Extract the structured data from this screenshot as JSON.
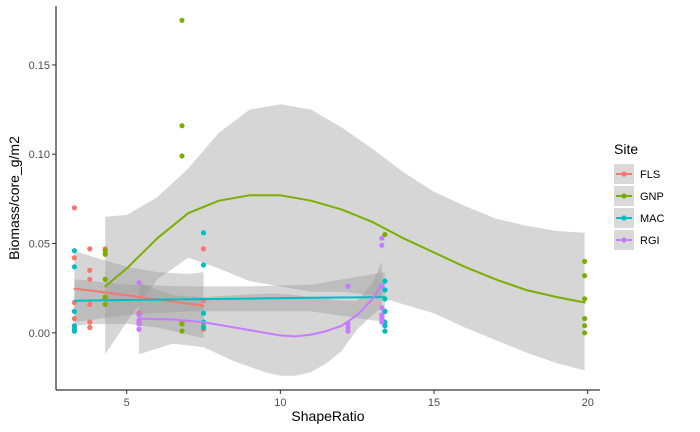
{
  "chart_data": {
    "type": "scatter",
    "title": "",
    "xlabel": "ShapeRatio",
    "ylabel": "Biomass/core_g/m2",
    "xlim": [
      2.7,
      20.4
    ],
    "ylim": [
      -0.032,
      0.183
    ],
    "x_ticks": [
      5,
      10,
      15,
      20
    ],
    "y_ticks": [
      0.0,
      0.05,
      0.1,
      0.15
    ],
    "x_tick_labels": [
      "5",
      "10",
      "15",
      "20"
    ],
    "y_tick_labels": [
      "0.00",
      "0.05",
      "0.10",
      "0.15"
    ],
    "grid": false,
    "legend": {
      "title": "Site",
      "position": "right"
    },
    "ribbon_color": "#999999",
    "series": [
      {
        "name": "FLS",
        "color": "#F8766D",
        "points": [
          [
            3.3,
            0.07
          ],
          [
            3.3,
            0.042
          ],
          [
            3.3,
            0.017
          ],
          [
            3.3,
            0.008
          ],
          [
            3.3,
            0.003
          ],
          [
            3.8,
            0.047
          ],
          [
            3.8,
            0.035
          ],
          [
            3.8,
            0.03
          ],
          [
            3.8,
            0.016
          ],
          [
            3.8,
            0.006
          ],
          [
            3.8,
            0.003
          ],
          [
            4.3,
            0.047
          ],
          [
            4.3,
            0.019
          ],
          [
            5.4,
            0.011
          ],
          [
            5.4,
            0.006
          ],
          [
            6.8,
            0.006
          ],
          [
            7.5,
            0.047
          ],
          [
            7.5,
            0.018
          ],
          [
            7.5,
            0.004
          ],
          [
            7.5,
            0.002
          ]
        ],
        "fit": [
          [
            3.3,
            0.0248
          ],
          [
            4.0,
            0.0233
          ],
          [
            5.0,
            0.021
          ],
          [
            6.0,
            0.0187
          ],
          [
            7.0,
            0.0164
          ],
          [
            7.5,
            0.0152
          ]
        ],
        "ribbon_upper": [
          [
            3.3,
            0.046
          ],
          [
            4.0,
            0.042
          ],
          [
            5.0,
            0.037
          ],
          [
            6.0,
            0.034
          ],
          [
            7.0,
            0.033
          ],
          [
            7.5,
            0.034
          ]
        ],
        "ribbon_lower": [
          [
            3.3,
            0.004
          ],
          [
            4.0,
            0.005
          ],
          [
            5.0,
            0.005
          ],
          [
            6.0,
            0.003
          ],
          [
            7.0,
            -0.001
          ],
          [
            7.5,
            -0.003
          ]
        ]
      },
      {
        "name": "GNP",
        "color": "#7CAE00",
        "points": [
          [
            4.3,
            0.046
          ],
          [
            4.3,
            0.044
          ],
          [
            4.3,
            0.03
          ],
          [
            4.3,
            0.02
          ],
          [
            4.3,
            0.016
          ],
          [
            6.8,
            0.175
          ],
          [
            6.8,
            0.116
          ],
          [
            6.8,
            0.099
          ],
          [
            6.8,
            0.005
          ],
          [
            6.8,
            0.001
          ],
          [
            13.4,
            0.055
          ],
          [
            13.4,
            0.012
          ],
          [
            19.9,
            0.04
          ],
          [
            19.9,
            0.032
          ],
          [
            19.9,
            0.019
          ],
          [
            19.9,
            0.008
          ],
          [
            19.9,
            0.004
          ],
          [
            19.9,
            0.0
          ]
        ],
        "fit": [
          [
            4.3,
            0.026
          ],
          [
            5.0,
            0.036
          ],
          [
            6.0,
            0.053
          ],
          [
            7.0,
            0.067
          ],
          [
            8.0,
            0.074
          ],
          [
            9.0,
            0.077
          ],
          [
            10.0,
            0.077
          ],
          [
            11.0,
            0.074
          ],
          [
            12.0,
            0.069
          ],
          [
            13.0,
            0.062
          ],
          [
            14.0,
            0.053
          ],
          [
            15.0,
            0.045
          ],
          [
            16.0,
            0.037
          ],
          [
            17.0,
            0.03
          ],
          [
            18.0,
            0.024
          ],
          [
            19.0,
            0.02
          ],
          [
            19.9,
            0.017
          ]
        ],
        "ribbon_upper": [
          [
            4.3,
            0.065
          ],
          [
            5.0,
            0.066
          ],
          [
            6.0,
            0.076
          ],
          [
            7.0,
            0.092
          ],
          [
            8.0,
            0.112
          ],
          [
            9.0,
            0.125
          ],
          [
            10.0,
            0.128
          ],
          [
            11.0,
            0.125
          ],
          [
            12.0,
            0.115
          ],
          [
            13.0,
            0.103
          ],
          [
            14.0,
            0.09
          ],
          [
            15.0,
            0.079
          ],
          [
            16.0,
            0.071
          ],
          [
            17.0,
            0.064
          ],
          [
            18.0,
            0.06
          ],
          [
            19.0,
            0.057
          ],
          [
            19.9,
            0.056
          ]
        ],
        "ribbon_lower": [
          [
            4.3,
            -0.012
          ],
          [
            5.0,
            0.006
          ],
          [
            6.0,
            0.03
          ],
          [
            7.0,
            0.042
          ],
          [
            8.0,
            0.036
          ],
          [
            9.0,
            0.029
          ],
          [
            10.0,
            0.026
          ],
          [
            11.0,
            0.023
          ],
          [
            12.0,
            0.023
          ],
          [
            13.0,
            0.021
          ],
          [
            14.0,
            0.016
          ],
          [
            15.0,
            0.011
          ],
          [
            16.0,
            0.003
          ],
          [
            17.0,
            -0.004
          ],
          [
            18.0,
            -0.011
          ],
          [
            19.0,
            -0.017
          ],
          [
            19.9,
            -0.021
          ]
        ]
      },
      {
        "name": "MAC",
        "color": "#00BFC4",
        "points": [
          [
            3.3,
            0.046
          ],
          [
            3.3,
            0.037
          ],
          [
            3.3,
            0.012
          ],
          [
            3.3,
            0.004
          ],
          [
            3.3,
            0.002
          ],
          [
            3.3,
            0.001
          ],
          [
            7.5,
            0.056
          ],
          [
            7.5,
            0.038
          ],
          [
            7.5,
            0.011
          ],
          [
            7.5,
            0.006
          ],
          [
            7.5,
            0.003
          ],
          [
            13.4,
            0.029
          ],
          [
            13.4,
            0.024
          ],
          [
            13.4,
            0.019
          ],
          [
            13.4,
            0.012
          ],
          [
            13.4,
            0.006
          ],
          [
            13.4,
            0.004
          ],
          [
            13.4,
            0.001
          ]
        ],
        "fit": [
          [
            3.3,
            0.018
          ],
          [
            5.0,
            0.0184
          ],
          [
            7.0,
            0.0188
          ],
          [
            9.0,
            0.0192
          ],
          [
            11.0,
            0.0196
          ],
          [
            13.4,
            0.02
          ]
        ],
        "ribbon_upper": [
          [
            3.3,
            0.03
          ],
          [
            5.0,
            0.027
          ],
          [
            7.0,
            0.026
          ],
          [
            9.0,
            0.026
          ],
          [
            11.0,
            0.027
          ],
          [
            13.4,
            0.034
          ]
        ],
        "ribbon_lower": [
          [
            3.3,
            0.006
          ],
          [
            5.0,
            0.01
          ],
          [
            7.0,
            0.012
          ],
          [
            9.0,
            0.012
          ],
          [
            11.0,
            0.012
          ],
          [
            13.4,
            0.006
          ]
        ]
      },
      {
        "name": "RGI",
        "color": "#C77CFF",
        "points": [
          [
            5.4,
            0.028
          ],
          [
            5.4,
            0.01
          ],
          [
            5.4,
            0.007
          ],
          [
            5.4,
            0.005
          ],
          [
            5.4,
            0.002
          ],
          [
            12.2,
            0.026
          ],
          [
            12.2,
            0.005
          ],
          [
            12.2,
            0.003
          ],
          [
            12.2,
            0.001
          ],
          [
            13.3,
            0.053
          ],
          [
            13.3,
            0.049
          ],
          [
            13.3,
            0.026
          ],
          [
            13.3,
            0.014
          ],
          [
            13.3,
            0.01
          ],
          [
            13.3,
            0.008
          ],
          [
            13.3,
            0.006
          ]
        ],
        "fit": [
          [
            5.4,
            0.008
          ],
          [
            6.5,
            0.0075
          ],
          [
            7.5,
            0.006
          ],
          [
            8.5,
            0.003
          ],
          [
            9.5,
            0.0
          ],
          [
            10.0,
            -0.0015
          ],
          [
            10.5,
            -0.002
          ],
          [
            11.0,
            -0.001
          ],
          [
            11.5,
            0.001
          ],
          [
            12.0,
            0.004
          ],
          [
            12.5,
            0.01
          ],
          [
            13.0,
            0.019
          ],
          [
            13.3,
            0.027
          ]
        ],
        "ribbon_upper": [
          [
            5.4,
            0.028
          ],
          [
            6.5,
            0.021
          ],
          [
            7.5,
            0.02
          ],
          [
            8.5,
            0.021
          ],
          [
            9.5,
            0.022
          ],
          [
            10.0,
            0.022
          ],
          [
            10.5,
            0.021
          ],
          [
            11.0,
            0.02
          ],
          [
            11.5,
            0.019
          ],
          [
            12.0,
            0.018
          ],
          [
            12.5,
            0.018
          ],
          [
            13.0,
            0.028
          ],
          [
            13.3,
            0.04
          ]
        ],
        "ribbon_lower": [
          [
            5.4,
            -0.012
          ],
          [
            6.5,
            -0.006
          ],
          [
            7.5,
            -0.008
          ],
          [
            8.5,
            -0.016
          ],
          [
            9.5,
            -0.022
          ],
          [
            10.0,
            -0.024
          ],
          [
            10.5,
            -0.024
          ],
          [
            11.0,
            -0.022
          ],
          [
            11.5,
            -0.017
          ],
          [
            12.0,
            -0.01
          ],
          [
            12.5,
            0.002
          ],
          [
            13.0,
            0.01
          ],
          [
            13.3,
            0.014
          ]
        ]
      }
    ]
  }
}
